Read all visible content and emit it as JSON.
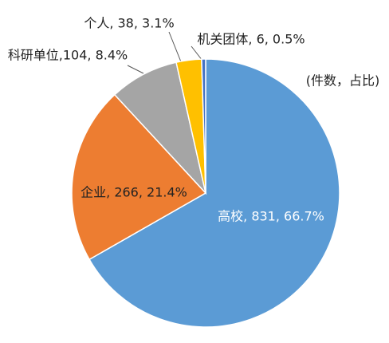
{
  "chart_data": {
    "type": "pie",
    "subtitle": "(件数，占比)",
    "values": [
      831,
      266,
      104,
      38,
      6
    ],
    "value_labels": [
      "高校, 831, 66.7%",
      "企业, 266, 21.4%",
      "科研单位,104, 8.4%",
      "个人, 38, 3.1%",
      "机关团体, 6, 0.5%"
    ],
    "colors": [
      "#5b9bd5",
      "#ed7d31",
      "#a5a5a5",
      "#ffc000",
      "#4472c4"
    ]
  }
}
